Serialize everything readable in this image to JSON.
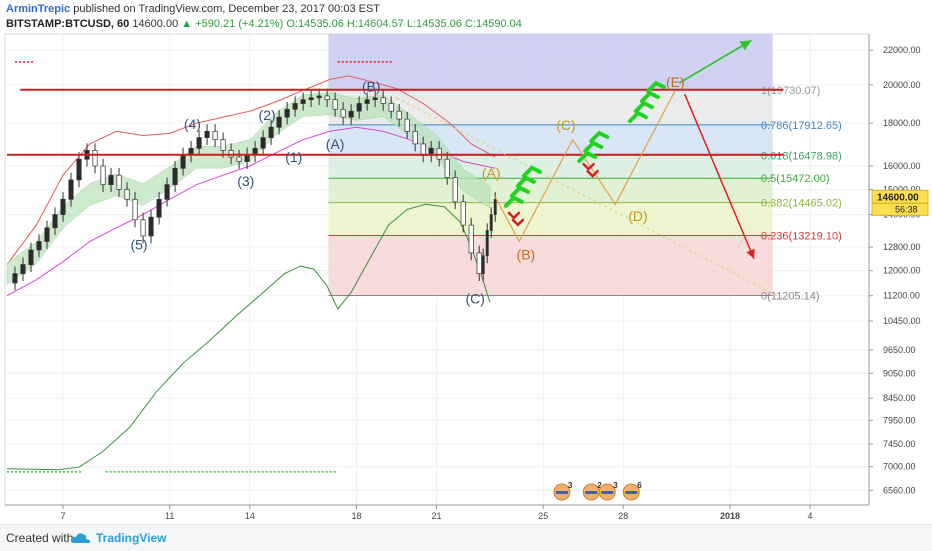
{
  "header": {
    "author": "ArminTrepic",
    "published": "published on TradingView.com, December 23, 2017 00:03 EST",
    "symbol": "BITSTAMP:BTCUSD, 60",
    "last": "14600.00",
    "change": "+590.21 (+4.21%)",
    "open": "O:14535.06",
    "high": "H:14604.57",
    "low": "L:14535.06",
    "close": "C:14590.04",
    "change_color": "#2e9e3b"
  },
  "footer": {
    "created_with": "Created with",
    "brand": "TradingView"
  },
  "chart_data": {
    "type": "line",
    "y_scale": "log",
    "ylim": [
      6300,
      23000
    ],
    "price_ticks": [
      22000,
      20000,
      18000,
      16000,
      15000,
      14000,
      12800,
      12000,
      11200,
      10450,
      9650,
      9050,
      8450,
      7950,
      7450,
      7000,
      6560
    ],
    "price_tick_labels": [
      "22000.00",
      "20000.00",
      "18000.00",
      "16000.00",
      "15000.00",
      "14000.00",
      "12800.00",
      "12000.00",
      "11200.00",
      "10450.00",
      "9650.00",
      "9050.00",
      "8450.00",
      "7950.00",
      "7450.00",
      "7000.00",
      "6560.00"
    ],
    "x_ticks": [
      {
        "day": 7,
        "label": "7"
      },
      {
        "day": 11,
        "label": "11"
      },
      {
        "day": 14,
        "label": "14"
      },
      {
        "day": 18,
        "label": "18"
      },
      {
        "day": 21,
        "label": "21"
      },
      {
        "day": 25,
        "label": "25"
      },
      {
        "day": 28,
        "label": "28"
      },
      {
        "day": 32,
        "label": "2018"
      },
      {
        "day": 35,
        "label": "4"
      }
    ],
    "current_price_label": "14600.00",
    "countdown_label": "56:38",
    "price_series": [
      [
        4.9,
        11600
      ],
      [
        5.2,
        11900
      ],
      [
        5.5,
        12200
      ],
      [
        5.8,
        12700
      ],
      [
        6.1,
        13000
      ],
      [
        6.4,
        13500
      ],
      [
        6.7,
        14000
      ],
      [
        7.0,
        14600
      ],
      [
        7.3,
        15400
      ],
      [
        7.6,
        16300
      ],
      [
        7.9,
        16700
      ],
      [
        8.2,
        16000
      ],
      [
        8.5,
        15200
      ],
      [
        8.8,
        15600
      ],
      [
        9.1,
        15000
      ],
      [
        9.4,
        14600
      ],
      [
        9.7,
        13800
      ],
      [
        10.0,
        13200
      ],
      [
        10.3,
        13900
      ],
      [
        10.6,
        14600
      ],
      [
        10.9,
        15200
      ],
      [
        11.2,
        15900
      ],
      [
        11.5,
        16500
      ],
      [
        11.8,
        16800
      ],
      [
        12.1,
        17300
      ],
      [
        12.4,
        17600
      ],
      [
        12.7,
        17200
      ],
      [
        13.0,
        16700
      ],
      [
        13.3,
        16400
      ],
      [
        13.6,
        16200
      ],
      [
        13.9,
        16500
      ],
      [
        14.2,
        16800
      ],
      [
        14.5,
        17300
      ],
      [
        14.8,
        17800
      ],
      [
        15.1,
        18300
      ],
      [
        15.4,
        18700
      ],
      [
        15.7,
        19000
      ],
      [
        16.0,
        19200
      ],
      [
        16.3,
        19300
      ],
      [
        16.6,
        19400
      ],
      [
        16.9,
        19200
      ],
      [
        17.2,
        18700
      ],
      [
        17.5,
        18300
      ],
      [
        17.8,
        18600
      ],
      [
        18.1,
        19000
      ],
      [
        18.4,
        19200
      ],
      [
        18.7,
        19300
      ],
      [
        19.0,
        19000
      ],
      [
        19.3,
        18600
      ],
      [
        19.6,
        18200
      ],
      [
        19.9,
        17600
      ],
      [
        20.2,
        17000
      ],
      [
        20.5,
        16500
      ],
      [
        20.8,
        16800
      ],
      [
        21.1,
        16300
      ],
      [
        21.4,
        15500
      ],
      [
        21.7,
        14500
      ],
      [
        22.0,
        13600
      ],
      [
        22.3,
        12600
      ],
      [
        22.6,
        11900
      ],
      [
        22.75,
        12500
      ],
      [
        22.9,
        13400
      ],
      [
        23.05,
        14000
      ],
      [
        23.2,
        14600
      ]
    ],
    "upper_band": [
      [
        4.9,
        12200
      ],
      [
        6.0,
        13600
      ],
      [
        7.0,
        15600
      ],
      [
        8.0,
        17000
      ],
      [
        9.0,
        17600
      ],
      [
        10.0,
        17400
      ],
      [
        11.0,
        17500
      ],
      [
        12.0,
        18000
      ],
      [
        13.0,
        18300
      ],
      [
        14.0,
        18600
      ],
      [
        15.0,
        19100
      ],
      [
        16.0,
        19700
      ],
      [
        17.0,
        20300
      ],
      [
        17.7,
        20500
      ],
      [
        18.5,
        20200
      ],
      [
        19.5,
        19800
      ],
      [
        20.5,
        19000
      ],
      [
        21.5,
        18000
      ],
      [
        22.3,
        17000
      ],
      [
        23.2,
        16400
      ]
    ],
    "lower_band": [
      [
        4.9,
        11200
      ],
      [
        6.0,
        11700
      ],
      [
        7.0,
        12300
      ],
      [
        8.0,
        13000
      ],
      [
        9.0,
        13500
      ],
      [
        10.0,
        14000
      ],
      [
        11.0,
        14600
      ],
      [
        12.0,
        15200
      ],
      [
        13.0,
        15600
      ],
      [
        14.0,
        16000
      ],
      [
        15.0,
        16600
      ],
      [
        16.0,
        17200
      ],
      [
        17.0,
        17600
      ],
      [
        18.0,
        17800
      ],
      [
        19.0,
        17600
      ],
      [
        20.0,
        17200
      ],
      [
        21.0,
        16700
      ],
      [
        22.0,
        16200
      ],
      [
        23.2,
        15900
      ]
    ],
    "long_ma": [
      [
        4.9,
        6960
      ],
      [
        6.8,
        6940
      ],
      [
        7.6,
        6990
      ],
      [
        8.5,
        7300
      ],
      [
        9.5,
        7800
      ],
      [
        10.5,
        8600
      ],
      [
        11.5,
        9300
      ],
      [
        12.5,
        9900
      ],
      [
        13.5,
        10600
      ],
      [
        14.5,
        11300
      ],
      [
        15.3,
        11900
      ],
      [
        15.9,
        12150
      ],
      [
        16.4,
        12050
      ],
      [
        16.9,
        11500
      ],
      [
        17.3,
        10800
      ],
      [
        17.8,
        11300
      ],
      [
        18.5,
        12400
      ],
      [
        19.2,
        13600
      ],
      [
        19.9,
        14200
      ],
      [
        20.6,
        14400
      ],
      [
        21.3,
        14300
      ],
      [
        21.9,
        13700
      ],
      [
        22.3,
        12800
      ],
      [
        22.7,
        11800
      ],
      [
        23.0,
        11000
      ]
    ],
    "ema_ribbon": [
      [
        4.9,
        11900
      ],
      [
        6.0,
        12600
      ],
      [
        7.0,
        13900
      ],
      [
        8.0,
        14800
      ],
      [
        9.0,
        15200
      ],
      [
        10.0,
        14800
      ],
      [
        11.0,
        15500
      ],
      [
        12.0,
        16400
      ],
      [
        13.0,
        16400
      ],
      [
        14.0,
        16700
      ],
      [
        15.0,
        18000
      ],
      [
        16.0,
        18900
      ],
      [
        17.0,
        19000
      ],
      [
        18.0,
        18700
      ],
      [
        19.0,
        18900
      ],
      [
        20.0,
        17900
      ],
      [
        21.0,
        16900
      ],
      [
        22.0,
        15400
      ],
      [
        23.0,
        14700
      ]
    ],
    "fib_levels": [
      {
        "ratio": 1.0,
        "price": 19730.07,
        "label": "1(19730.07)",
        "color": "#999999"
      },
      {
        "ratio": 0.786,
        "price": 17912.65,
        "label": "0.786(17912.65)",
        "color": "#3a87c8"
      },
      {
        "ratio": 0.618,
        "price": 16478.98,
        "label": "0.618(16478.98)",
        "color": "#3aa564"
      },
      {
        "ratio": 0.5,
        "price": 15472.0,
        "label": "0.5(15472.00)",
        "color": "#3cab3c"
      },
      {
        "ratio": 0.382,
        "price": 14465.02,
        "label": "0.382(14465.02)",
        "color": "#8fb83c"
      },
      {
        "ratio": 0.236,
        "price": 13219.1,
        "label": "0.236(13219.10)",
        "color": "#d63b3b"
      },
      {
        "ratio": 0.0,
        "price": 11205.14,
        "label": "0(11205.14)",
        "color": "#888888"
      }
    ],
    "fib_start_day": 16.95,
    "fib_end_day": 33.6,
    "resistance_lines": [
      {
        "price": 19730,
        "x0": 5.4,
        "x1": 34.0,
        "color": "#cc1f1f"
      },
      {
        "price": 16500,
        "x0": 4.9,
        "x1": 34.0,
        "color": "#cc1f1f"
      }
    ],
    "wave_labels": [
      {
        "text": "(5)",
        "day": 9.85,
        "price": 12900,
        "color": "#35507a"
      },
      {
        "text": "(4)",
        "day": 11.85,
        "price": 17950,
        "color": "#35507a"
      },
      {
        "text": "(3)",
        "day": 13.85,
        "price": 15350,
        "color": "#35507a"
      },
      {
        "text": "(2)",
        "day": 14.65,
        "price": 18400,
        "color": "#35507a"
      },
      {
        "text": "(1)",
        "day": 15.65,
        "price": 16400,
        "color": "#35507a"
      },
      {
        "text": "(A)",
        "day": 17.2,
        "price": 17000,
        "color": "#35507a"
      },
      {
        "text": "(B)",
        "day": 18.55,
        "price": 19920,
        "color": "#35507a"
      },
      {
        "text": "(C)",
        "day": 22.45,
        "price": 11120,
        "color": "#35507a"
      },
      {
        "text": "(A)",
        "day": 23.05,
        "price": 15700,
        "color": "#c49a1b"
      },
      {
        "text": "(B)",
        "day": 24.35,
        "price": 12550,
        "color": "#c26c18"
      },
      {
        "text": "(C)",
        "day": 25.85,
        "price": 17900,
        "color": "#c49a1b"
      },
      {
        "text": "(D)",
        "day": 28.55,
        "price": 13950,
        "color": "#c49a1b"
      },
      {
        "text": "(E)",
        "day": 29.95,
        "price": 20150,
        "color": "#c26c18"
      }
    ],
    "projection_path": [
      [
        23.2,
        14700
      ],
      [
        24.1,
        13000
      ],
      [
        26.1,
        17200
      ],
      [
        27.7,
        14400
      ],
      [
        29.95,
        19700
      ]
    ],
    "projection_color": "#e0a04a",
    "green_arrow": {
      "from": [
        30.1,
        20100
      ],
      "to": [
        32.8,
        22600
      ],
      "color": "#2ec52e"
    },
    "red_arrow": {
      "from": [
        30.3,
        19500
      ],
      "to": [
        32.9,
        12400
      ],
      "color": "#e02020"
    },
    "trendline": {
      "from": [
        19.5,
        19300
      ],
      "to": [
        34.0,
        11100
      ],
      "color": "#e6d08a"
    },
    "chevrons": [
      {
        "day": 23.9,
        "price": 13950,
        "color": "#d82020",
        "dir": "down",
        "count": 2
      },
      {
        "day": 26.7,
        "price": 15950,
        "color": "#d82020",
        "dir": "down",
        "count": 2
      },
      {
        "day": 23.9,
        "price": 14500,
        "color": "#21d321",
        "dir": "up",
        "count": 4
      },
      {
        "day": 26.65,
        "price": 16400,
        "color": "#21d321",
        "dir": "up",
        "count": 3
      },
      {
        "day": 28.55,
        "price": 18300,
        "color": "#21d321",
        "dir": "up",
        "count": 4
      }
    ],
    "red_dotted": [
      {
        "price": 21300,
        "x0": 5.2,
        "x1": 5.9
      },
      {
        "price": 21300,
        "x0": 17.3,
        "x1": 19.4
      }
    ],
    "green_dotted": [
      {
        "price": 6900,
        "x0": 4.9,
        "x1": 7.7
      },
      {
        "price": 6900,
        "x0": 8.6,
        "x1": 17.3
      }
    ],
    "event_badges": [
      {
        "day": 25.7,
        "count": "3"
      },
      {
        "day": 26.8,
        "count": "2"
      },
      {
        "day": 27.4,
        "count": "3"
      },
      {
        "day": 28.3,
        "count": "6"
      }
    ]
  }
}
